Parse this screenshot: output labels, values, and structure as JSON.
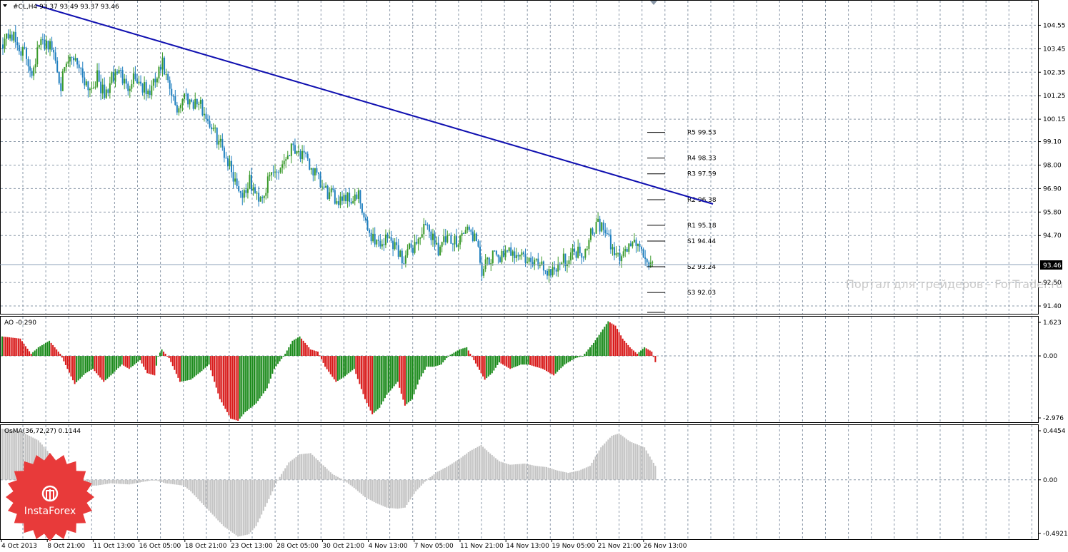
{
  "colors": {
    "up_candle": "#3a9a2a",
    "down_candle": "#1f7fbf",
    "trendline": "#1010b0",
    "grid": "#8a98a8",
    "ao_up": "#1a8a1a",
    "ao_down": "#d81818",
    "osma": "#c4c4c4",
    "price_tag_bg": "#000000",
    "logo": "#e83a3a"
  },
  "main": {
    "header": "#CL,H4  93.37 93.49 93.37 93.46",
    "current_price": "93.46",
    "yticks": [
      "104.55",
      "103.45",
      "102.35",
      "101.25",
      "100.15",
      "99.10",
      "98.00",
      "96.90",
      "95.80",
      "94.70",
      "92.50",
      "91.40"
    ],
    "watermark": "Портал для трейдеров - ForTrader.ru",
    "pivots": [
      {
        "label": "R5 99.53",
        "value": 99.53
      },
      {
        "label": "R4 98.33",
        "value": 98.33
      },
      {
        "label": "R3 97.59",
        "value": 97.59
      },
      {
        "label": "R2 96.38",
        "value": 96.38
      },
      {
        "label": "R1 95.18",
        "value": 95.18
      },
      {
        "label": "S1 94.44",
        "value": 94.44
      },
      {
        "label": "S2 93.24",
        "value": 93.24
      },
      {
        "label": "S3 92.03",
        "value": 92.03
      }
    ],
    "ylim": [
      91.1,
      105.6
    ]
  },
  "ao": {
    "header": "AO -0.290",
    "yticks": [
      "1.623",
      "0.00",
      "-2.976"
    ],
    "ylim": [
      -3.0,
      1.75
    ]
  },
  "osma": {
    "header": "OsMA(36,72,27) 0.1144",
    "yticks": [
      "0.4454",
      "0.00",
      "-0.4921"
    ],
    "ylim": [
      -0.5,
      0.46
    ]
  },
  "x_labels": [
    "4 Oct 2013",
    "8 Oct 21:00",
    "11 Oct 13:00",
    "16 Oct 05:00",
    "18 Oct 21:00",
    "23 Oct 13:00",
    "28 Oct 05:00",
    "30 Oct 21:00",
    "4 Nov 13:00",
    "7 Nov 05:00",
    "11 Nov 21:00",
    "14 Nov 13:00",
    "19 Nov 05:00",
    "21 Nov 21:00",
    "26 Nov 13:00"
  ],
  "logo": {
    "text": "InstaForex"
  },
  "chart_data": [
    {
      "type": "candlestick",
      "title": "#CL,H4",
      "ylim": [
        91.1,
        105.6
      ],
      "close_anchors": [
        [
          0,
          103.8
        ],
        [
          4,
          104.2
        ],
        [
          8,
          103.6
        ],
        [
          12,
          103.2
        ],
        [
          16,
          102.4
        ],
        [
          20,
          103.6
        ],
        [
          24,
          103.8
        ],
        [
          28,
          103.3
        ],
        [
          32,
          101.8
        ],
        [
          36,
          102.8
        ],
        [
          40,
          103.1
        ],
        [
          44,
          102.2
        ],
        [
          48,
          101.6
        ],
        [
          52,
          102.1
        ],
        [
          56,
          101.2
        ],
        [
          60,
          102.0
        ],
        [
          64,
          102.5
        ],
        [
          68,
          101.6
        ],
        [
          72,
          102.2
        ],
        [
          76,
          101.8
        ],
        [
          80,
          101.3
        ],
        [
          84,
          101.9
        ],
        [
          88,
          102.7
        ],
        [
          92,
          101.4
        ],
        [
          96,
          100.6
        ],
        [
          100,
          101.3
        ],
        [
          104,
          101.0
        ],
        [
          108,
          100.9
        ],
        [
          112,
          100.3
        ],
        [
          116,
          99.6
        ],
        [
          120,
          99.0
        ],
        [
          124,
          98.2
        ],
        [
          128,
          97.3
        ],
        [
          132,
          96.6
        ],
        [
          136,
          97.2
        ],
        [
          140,
          96.5
        ],
        [
          144,
          96.7
        ],
        [
          148,
          97.6
        ],
        [
          152,
          97.8
        ],
        [
          156,
          98.4
        ],
        [
          160,
          99.0
        ],
        [
          164,
          98.5
        ],
        [
          168,
          98.1
        ],
        [
          172,
          97.6
        ],
        [
          176,
          96.9
        ],
        [
          180,
          96.6
        ],
        [
          184,
          96.4
        ],
        [
          188,
          96.6
        ],
        [
          192,
          96.4
        ],
        [
          196,
          96.5
        ],
        [
          200,
          95.1
        ],
        [
          204,
          94.6
        ],
        [
          208,
          94.3
        ],
        [
          212,
          94.6
        ],
        [
          216,
          94.3
        ],
        [
          220,
          93.6
        ],
        [
          224,
          94.0
        ],
        [
          228,
          94.4
        ],
        [
          232,
          95.0
        ],
        [
          236,
          94.8
        ],
        [
          240,
          94.1
        ],
        [
          244,
          94.5
        ],
        [
          248,
          94.3
        ],
        [
          252,
          94.7
        ],
        [
          256,
          95.0
        ],
        [
          260,
          94.6
        ],
        [
          264,
          93.1
        ],
        [
          268,
          93.4
        ],
        [
          272,
          93.9
        ],
        [
          276,
          93.6
        ],
        [
          280,
          94.0
        ],
        [
          284,
          93.9
        ],
        [
          288,
          93.6
        ],
        [
          292,
          93.3
        ],
        [
          296,
          93.5
        ],
        [
          300,
          93.0
        ],
        [
          304,
          93.2
        ],
        [
          308,
          93.5
        ],
        [
          312,
          93.7
        ],
        [
          316,
          94.0
        ],
        [
          320,
          93.9
        ],
        [
          324,
          94.9
        ],
        [
          328,
          95.3
        ],
        [
          332,
          94.8
        ],
        [
          336,
          94.0
        ],
        [
          340,
          93.7
        ],
        [
          344,
          94.1
        ],
        [
          348,
          94.5
        ],
        [
          352,
          93.8
        ],
        [
          356,
          93.5
        ],
        [
          358,
          93.46
        ]
      ]
    },
    {
      "type": "bar",
      "title": "AO",
      "ylim": [
        -3.0,
        1.75
      ],
      "value_anchors": [
        [
          0,
          0.9
        ],
        [
          10,
          0.8
        ],
        [
          16,
          0.1
        ],
        [
          20,
          0.4
        ],
        [
          26,
          0.7
        ],
        [
          32,
          0.1
        ],
        [
          36,
          -0.6
        ],
        [
          40,
          -1.3
        ],
        [
          46,
          -0.8
        ],
        [
          50,
          -0.6
        ],
        [
          56,
          -1.2
        ],
        [
          60,
          -0.9
        ],
        [
          66,
          -0.4
        ],
        [
          70,
          -0.6
        ],
        [
          76,
          -0.2
        ],
        [
          80,
          -0.8
        ],
        [
          84,
          -0.9
        ],
        [
          86,
          0.0
        ],
        [
          88,
          0.3
        ],
        [
          92,
          -0.1
        ],
        [
          98,
          -1.2
        ],
        [
          104,
          -1.1
        ],
        [
          110,
          -0.7
        ],
        [
          114,
          -0.4
        ],
        [
          120,
          -2.0
        ],
        [
          126,
          -2.9
        ],
        [
          130,
          -3.0
        ],
        [
          134,
          -2.6
        ],
        [
          140,
          -2.2
        ],
        [
          146,
          -1.5
        ],
        [
          150,
          -0.6
        ],
        [
          156,
          0.1
        ],
        [
          160,
          0.7
        ],
        [
          164,
          0.9
        ],
        [
          170,
          0.3
        ],
        [
          174,
          0.2
        ],
        [
          178,
          -0.5
        ],
        [
          184,
          -1.2
        ],
        [
          188,
          -1.0
        ],
        [
          194,
          -0.6
        ],
        [
          200,
          -2.0
        ],
        [
          204,
          -2.7
        ],
        [
          208,
          -2.4
        ],
        [
          212,
          -1.8
        ],
        [
          218,
          -1.2
        ],
        [
          222,
          -2.3
        ],
        [
          226,
          -2.0
        ],
        [
          230,
          -1.1
        ],
        [
          234,
          -0.5
        ],
        [
          238,
          -0.5
        ],
        [
          242,
          -0.4
        ],
        [
          246,
          0.0
        ],
        [
          252,
          0.3
        ],
        [
          256,
          0.4
        ],
        [
          258,
          0.1
        ],
        [
          262,
          -0.5
        ],
        [
          266,
          -1.1
        ],
        [
          270,
          -0.8
        ],
        [
          274,
          -0.3
        ],
        [
          280,
          -0.6
        ],
        [
          286,
          -0.4
        ],
        [
          290,
          -0.4
        ],
        [
          298,
          -0.6
        ],
        [
          304,
          -0.9
        ],
        [
          310,
          -0.4
        ],
        [
          316,
          -0.1
        ],
        [
          320,
          0.0
        ],
        [
          326,
          0.6
        ],
        [
          330,
          1.1
        ],
        [
          334,
          1.6
        ],
        [
          338,
          1.4
        ],
        [
          342,
          0.8
        ],
        [
          346,
          0.4
        ],
        [
          350,
          0.1
        ],
        [
          354,
          0.4
        ],
        [
          358,
          0.2
        ],
        [
          360,
          -0.29
        ]
      ]
    },
    {
      "type": "bar",
      "title": "OsMA(36,72,27)",
      "ylim": [
        -0.5,
        0.46
      ],
      "value_anchors": [
        [
          0,
          0.44
        ],
        [
          10,
          0.42
        ],
        [
          20,
          0.34
        ],
        [
          30,
          0.16
        ],
        [
          36,
          0.0
        ],
        [
          44,
          -0.05
        ],
        [
          52,
          -0.05
        ],
        [
          60,
          -0.03
        ],
        [
          70,
          -0.04
        ],
        [
          84,
          0.0
        ],
        [
          90,
          -0.03
        ],
        [
          100,
          -0.05
        ],
        [
          104,
          -0.1
        ],
        [
          110,
          -0.2
        ],
        [
          116,
          -0.3
        ],
        [
          122,
          -0.4
        ],
        [
          130,
          -0.49
        ],
        [
          136,
          -0.47
        ],
        [
          140,
          -0.4
        ],
        [
          146,
          -0.2
        ],
        [
          152,
          0.0
        ],
        [
          158,
          0.15
        ],
        [
          164,
          0.22
        ],
        [
          170,
          0.23
        ],
        [
          176,
          0.14
        ],
        [
          182,
          0.05
        ],
        [
          188,
          0.0
        ],
        [
          194,
          -0.07
        ],
        [
          200,
          -0.15
        ],
        [
          206,
          -0.2
        ],
        [
          212,
          -0.24
        ],
        [
          218,
          -0.25
        ],
        [
          222,
          -0.24
        ],
        [
          228,
          -0.1
        ],
        [
          234,
          0.0
        ],
        [
          240,
          0.07
        ],
        [
          246,
          0.12
        ],
        [
          252,
          0.18
        ],
        [
          258,
          0.25
        ],
        [
          264,
          0.3
        ],
        [
          268,
          0.24
        ],
        [
          274,
          0.16
        ],
        [
          280,
          0.13
        ],
        [
          288,
          0.14
        ],
        [
          294,
          0.12
        ],
        [
          300,
          0.11
        ],
        [
          306,
          0.08
        ],
        [
          312,
          0.06
        ],
        [
          318,
          0.08
        ],
        [
          324,
          0.12
        ],
        [
          330,
          0.28
        ],
        [
          336,
          0.38
        ],
        [
          340,
          0.4
        ],
        [
          346,
          0.33
        ],
        [
          354,
          0.28
        ],
        [
          360,
          0.12
        ]
      ]
    }
  ]
}
